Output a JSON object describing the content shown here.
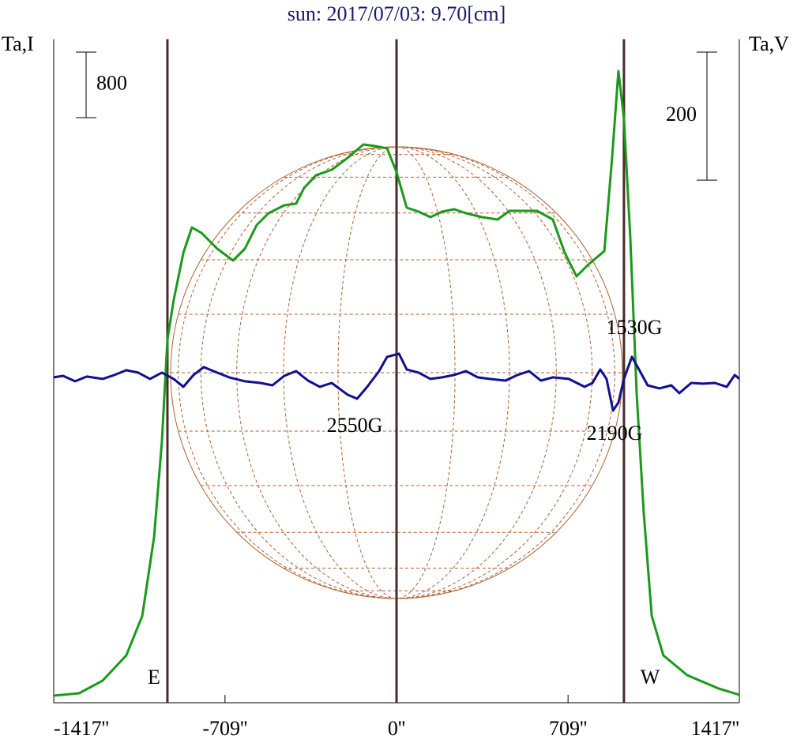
{
  "chart_data": {
    "type": "line",
    "title": "sun: 2017/07/03: 9.70[cm]",
    "ylabel": "Ta,I",
    "y2label": "Ta,V",
    "xlim": [
      -1417,
      1417
    ],
    "xticks": [
      {
        "value": -1417,
        "label": "-1417''"
      },
      {
        "value": -709,
        "label": "-709''"
      },
      {
        "value": 0,
        "label": "0''"
      },
      {
        "value": 709,
        "label": "709''"
      },
      {
        "value": 1417,
        "label": "1417''"
      }
    ],
    "ylim": [
      0,
      8100
    ],
    "y2lim": [
      -506,
      531
    ],
    "scale_bars": [
      {
        "label": "800",
        "value": 800,
        "axis": "y"
      },
      {
        "label": "200",
        "value": 200,
        "axis": "y2"
      }
    ],
    "vlines": [
      -947,
      0,
      940
    ],
    "limb_labels": [
      "E",
      "W"
    ],
    "annotations": [
      "1530G",
      "2550G",
      "2190G"
    ],
    "series": [
      {
        "name": "I",
        "color": "#1a9a1a",
        "axis": "y",
        "x": [
          -1417,
          -1312,
          -1215,
          -1117,
          -1051,
          -1002,
          -970,
          -947,
          -921,
          -881,
          -846,
          -806,
          -741,
          -676,
          -627,
          -578,
          -529,
          -464,
          -415,
          -382,
          -333,
          -268,
          -202,
          -137,
          -88,
          -39,
          0,
          42,
          91,
          140,
          189,
          238,
          287,
          353,
          418,
          467,
          581,
          646,
          695,
          744,
          793,
          859,
          891,
          917,
          940,
          966,
          993,
          1022,
          1055,
          1103,
          1201,
          1332,
          1417
        ],
        "values": [
          87,
          116,
          270,
          578,
          1060,
          2024,
          3181,
          4434,
          4916,
          5494,
          5802,
          5735,
          5542,
          5398,
          5542,
          5831,
          5976,
          6072,
          6092,
          6284,
          6439,
          6506,
          6651,
          6814,
          6795,
          6766,
          6477,
          6043,
          5995,
          5928,
          5995,
          6024,
          5976,
          5928,
          5899,
          6005,
          6005,
          5899,
          5494,
          5205,
          5349,
          5513,
          6651,
          7711,
          7133,
          5687,
          3759,
          2313,
          1060,
          578,
          337,
          173,
          96
        ]
      },
      {
        "name": "V",
        "color": "#101090",
        "axis": "y2",
        "x": [
          -1417,
          -1378,
          -1329,
          -1280,
          -1215,
          -1166,
          -1117,
          -1068,
          -1019,
          -970,
          -921,
          -881,
          -839,
          -797,
          -757,
          -692,
          -627,
          -562,
          -513,
          -464,
          -415,
          -366,
          -317,
          -268,
          -202,
          -163,
          -121,
          -72,
          -39,
          10,
          42,
          91,
          140,
          189,
          238,
          287,
          336,
          385,
          451,
          500,
          548,
          597,
          646,
          712,
          777,
          810,
          842,
          868,
          895,
          917,
          940,
          973,
          1006,
          1038,
          1087,
          1136,
          1169,
          1218,
          1267,
          1316,
          1365,
          1398,
          1417
        ],
        "values": [
          2.5,
          4.9,
          -3.7,
          3.7,
          0,
          6.2,
          13.6,
          9.9,
          0,
          9.9,
          0,
          -12.3,
          6.2,
          18.5,
          12.3,
          2.5,
          -3.7,
          -6.2,
          -9.9,
          4.9,
          12.3,
          -2.5,
          -12.3,
          -6.2,
          -24.7,
          -30.9,
          -12.3,
          12.3,
          34.6,
          39.5,
          14.8,
          9.9,
          0,
          2.5,
          6.2,
          12.3,
          2.5,
          0,
          -2.5,
          6.2,
          12.3,
          -2.5,
          2.5,
          0,
          -12.3,
          -6.2,
          14.8,
          0,
          -49.4,
          -37,
          0,
          34.6,
          12.3,
          -9.9,
          -14.8,
          -9.9,
          -22.2,
          -6.2,
          -7.4,
          -6.2,
          -12.3,
          6.2,
          0
        ]
      }
    ]
  }
}
